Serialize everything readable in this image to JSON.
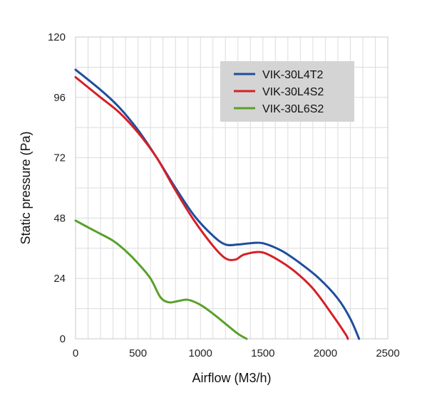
{
  "chart_data": {
    "type": "line",
    "xlabel": "Airflow (M3/h)",
    "ylabel": "Static pressure (Pa)",
    "xlim": [
      0,
      2500
    ],
    "ylim": [
      0,
      120
    ],
    "xticks": [
      0,
      500,
      1000,
      1500,
      2000,
      2500
    ],
    "yticks": [
      0,
      24,
      48,
      72,
      96,
      120
    ],
    "xtick_labels": [
      "0",
      "500",
      "1000",
      "1500",
      "2000",
      "2500"
    ],
    "ytick_labels": [
      "0",
      "24",
      "48",
      "72",
      "96",
      "120"
    ],
    "grid": true,
    "legend_position": "top-right",
    "series": [
      {
        "name": "VIK-30L4T2",
        "color": "#1f4e9c",
        "points": [
          [
            0,
            107
          ],
          [
            200,
            99
          ],
          [
            350,
            92
          ],
          [
            500,
            83
          ],
          [
            650,
            72
          ],
          [
            800,
            60
          ],
          [
            950,
            49
          ],
          [
            1100,
            41
          ],
          [
            1200,
            37.5
          ],
          [
            1300,
            37.5
          ],
          [
            1400,
            38
          ],
          [
            1500,
            38
          ],
          [
            1650,
            35
          ],
          [
            1800,
            30
          ],
          [
            1950,
            24
          ],
          [
            2100,
            16
          ],
          [
            2200,
            8
          ],
          [
            2270,
            0
          ]
        ]
      },
      {
        "name": "VIK-30L4S2",
        "color": "#d42027",
        "points": [
          [
            0,
            104
          ],
          [
            200,
            96
          ],
          [
            350,
            90
          ],
          [
            500,
            82
          ],
          [
            650,
            72
          ],
          [
            800,
            59
          ],
          [
            950,
            47
          ],
          [
            1100,
            37
          ],
          [
            1200,
            32
          ],
          [
            1280,
            31.5
          ],
          [
            1350,
            33.5
          ],
          [
            1480,
            34.5
          ],
          [
            1600,
            32
          ],
          [
            1750,
            27
          ],
          [
            1900,
            20
          ],
          [
            2050,
            10
          ],
          [
            2160,
            2
          ],
          [
            2180,
            0
          ]
        ]
      },
      {
        "name": "VIK-30L6S2",
        "color": "#5aa02c",
        "points": [
          [
            0,
            47
          ],
          [
            150,
            43
          ],
          [
            300,
            39
          ],
          [
            400,
            35
          ],
          [
            500,
            30
          ],
          [
            600,
            24
          ],
          [
            680,
            16.5
          ],
          [
            750,
            14.5
          ],
          [
            820,
            15
          ],
          [
            900,
            15.5
          ],
          [
            1000,
            13.5
          ],
          [
            1100,
            10
          ],
          [
            1200,
            6
          ],
          [
            1300,
            2
          ],
          [
            1370,
            0
          ]
        ]
      }
    ]
  }
}
